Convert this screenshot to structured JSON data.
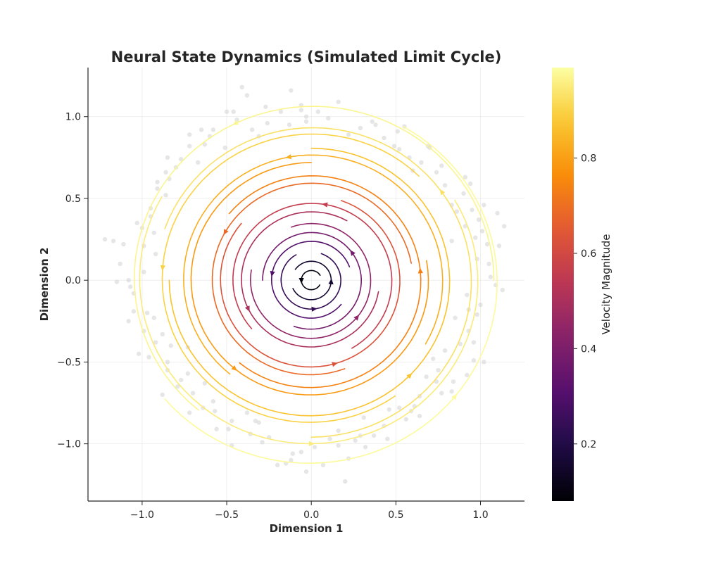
{
  "chart_data": {
    "type": "streamplot",
    "title": "Neural State Dynamics (Simulated Limit Cycle)",
    "xlabel": "Dimension 1",
    "ylabel": "Dimension 2",
    "xlim": [
      -1.32,
      1.26
    ],
    "ylim": [
      -1.35,
      1.3
    ],
    "xticks": [
      -1.0,
      -0.5,
      0.0,
      0.5,
      1.0
    ],
    "xtick_labels": [
      "−1.0",
      "−0.5",
      "0.0",
      "0.5",
      "1.0"
    ],
    "yticks": [
      -1.0,
      -0.5,
      0.0,
      0.5,
      1.0
    ],
    "ytick_labels": [
      "−1.0",
      "−0.5",
      "0.0",
      "0.5",
      "1.0"
    ],
    "grid": true,
    "flow_direction": "counter-clockwise",
    "dynamics": "stable limit cycle of radius about 1.0 (speed grows with distance from the center)",
    "colormap": "inferno",
    "colorbar": {
      "label": "Velocity Magnitude",
      "range": [
        0.08,
        0.99
      ],
      "ticks": [
        0.2,
        0.4,
        0.6,
        0.8
      ],
      "tick_labels": [
        "0.2",
        "0.4",
        "0.6",
        "0.8"
      ],
      "placement": "right"
    },
    "streamlines": [
      {
        "r": 0.06,
        "start_deg": 30,
        "arc_deg": 300,
        "speed": 0.1
      },
      {
        "r": 0.12,
        "start_deg": 205,
        "arc_deg": 300,
        "speed": 0.16
      },
      {
        "r": 0.18,
        "start_deg": 120,
        "arc_deg": 310,
        "speed": 0.24
      },
      {
        "r": 0.24,
        "start_deg": 20,
        "arc_deg": 300,
        "speed": 0.3
      },
      {
        "r": 0.3,
        "start_deg": 250,
        "arc_deg": 290,
        "speed": 0.38
      },
      {
        "r": 0.36,
        "start_deg": 170,
        "arc_deg": 300,
        "speed": 0.44
      },
      {
        "r": 0.42,
        "start_deg": 60,
        "arc_deg": 290,
        "speed": 0.5
      },
      {
        "r": 0.48,
        "start_deg": 300,
        "arc_deg": 280,
        "speed": 0.56
      },
      {
        "r": 0.54,
        "start_deg": 140,
        "arc_deg": 290,
        "speed": 0.63
      },
      {
        "r": 0.6,
        "start_deg": 10,
        "arc_deg": 280,
        "speed": 0.69
      },
      {
        "r": 0.66,
        "start_deg": 230,
        "arc_deg": 270,
        "speed": 0.74
      },
      {
        "r": 0.72,
        "start_deg": 90,
        "arc_deg": 280,
        "speed": 0.79
      },
      {
        "r": 0.78,
        "start_deg": 330,
        "arc_deg": 260,
        "speed": 0.83
      },
      {
        "r": 0.84,
        "start_deg": 180,
        "arc_deg": 270,
        "speed": 0.87
      },
      {
        "r": 0.9,
        "start_deg": 45,
        "arc_deg": 260,
        "speed": 0.9
      },
      {
        "r": 0.96,
        "start_deg": 270,
        "arc_deg": 250,
        "speed": 0.93
      },
      {
        "r": 1.02,
        "start_deg": 150,
        "arc_deg": 240,
        "speed": 0.95
      },
      {
        "r": 1.08,
        "start_deg": 0,
        "arc_deg": 230,
        "speed": 0.97
      },
      {
        "r": 1.13,
        "start_deg": 220,
        "arc_deg": 200,
        "speed": 0.98
      }
    ],
    "scatter_points": [
      [
        1.02,
        0.46
      ],
      [
        1.14,
        0.33
      ],
      [
        0.99,
        0.37
      ],
      [
        0.36,
        0.97
      ],
      [
        0.83,
        0.24
      ],
      [
        0.16,
        1.09
      ],
      [
        -0.06,
        1.04
      ],
      [
        -0.31,
        0.88
      ],
      [
        -0.72,
        0.82
      ],
      [
        -0.86,
        0.52
      ],
      [
        -0.99,
        0.21
      ],
      [
        -1.11,
        0.22
      ],
      [
        -0.93,
        -0.23
      ],
      [
        -0.73,
        -0.41
      ],
      [
        -0.58,
        -0.74
      ],
      [
        -0.38,
        -0.81
      ],
      [
        -0.03,
        -1.17
      ],
      [
        0.16,
        -0.92
      ],
      [
        0.29,
        -0.95
      ],
      [
        0.61,
        -0.77
      ],
      [
        0.75,
        -0.55
      ],
      [
        0.96,
        -0.38
      ],
      [
        1.02,
        -0.5
      ],
      [
        1.06,
        0.02
      ],
      [
        0.91,
        0.63
      ],
      [
        0.7,
        0.81
      ],
      [
        0.55,
        0.94
      ],
      [
        -0.12,
        1.16
      ],
      [
        -0.38,
        1.13
      ],
      [
        -0.5,
        1.03
      ],
      [
        -0.8,
        0.69
      ],
      [
        -0.95,
        0.39
      ],
      [
        -1.08,
        0.0
      ],
      [
        -1.02,
        -0.45
      ],
      [
        -0.88,
        -0.7
      ],
      [
        -0.72,
        -0.81
      ],
      [
        -0.47,
        -1.01
      ],
      [
        -0.2,
        -1.13
      ],
      [
        0.2,
        -1.23
      ],
      [
        0.45,
        -0.97
      ],
      [
        0.56,
        -0.85
      ],
      [
        0.83,
        -0.68
      ],
      [
        0.92,
        -0.58
      ],
      [
        1.09,
        -0.03
      ],
      [
        1.1,
        0.41
      ],
      [
        0.83,
        0.46
      ],
      [
        0.6,
        0.67
      ],
      [
        0.49,
        0.82
      ],
      [
        -0.03,
        0.97
      ],
      [
        -0.26,
        0.96
      ],
      [
        -0.58,
        0.92
      ],
      [
        -0.67,
        0.72
      ],
      [
        -0.86,
        0.66
      ],
      [
        -0.99,
        0.05
      ],
      [
        -1.05,
        -0.08
      ],
      [
        -0.96,
        -0.47
      ],
      [
        -0.79,
        -0.65
      ],
      [
        -0.56,
        -0.91
      ],
      [
        -0.25,
        -0.96
      ],
      [
        0.02,
        -1.02
      ],
      [
        0.32,
        -1.02
      ],
      [
        0.68,
        -0.59
      ],
      [
        0.85,
        -0.23
      ],
      [
        0.98,
        0.13
      ],
      [
        0.97,
        0.26
      ],
      [
        0.79,
        0.58
      ],
      [
        0.52,
        0.8
      ],
      [
        0.29,
        0.93
      ],
      [
        -0.13,
        0.95
      ],
      [
        -0.46,
        1.03
      ],
      [
        -0.72,
        0.89
      ],
      [
        -0.91,
        0.56
      ],
      [
        -1.17,
        0.24
      ],
      [
        -1.15,
        -0.01
      ],
      [
        -0.92,
        -0.38
      ],
      [
        -0.73,
        -0.57
      ],
      [
        -0.64,
        -0.78
      ],
      [
        -0.36,
        -0.94
      ],
      [
        -0.12,
        -1.1
      ],
      [
        0.11,
        -0.97
      ],
      [
        0.43,
        -0.89
      ],
      [
        0.64,
        -0.71
      ],
      [
        0.84,
        -0.62
      ],
      [
        0.96,
        -0.49
      ],
      [
        0.93,
        -0.18
      ],
      [
        1.05,
        0.1
      ],
      [
        0.91,
        0.33
      ],
      [
        0.77,
        0.7
      ],
      [
        0.38,
        0.95
      ],
      [
        0.04,
        1.03
      ],
      [
        -0.27,
        1.06
      ],
      [
        -0.51,
        0.81
      ],
      [
        -0.77,
        0.74
      ],
      [
        -0.95,
        0.44
      ],
      [
        -0.92,
        0.16
      ],
      [
        -1.08,
        -0.25
      ],
      [
        -0.85,
        -0.5
      ],
      [
        -0.7,
        -0.69
      ],
      [
        -0.47,
        -0.86
      ],
      [
        -0.15,
        -1.12
      ],
      [
        0.16,
        -1.01
      ],
      [
        0.37,
        -0.95
      ],
      [
        0.64,
        -0.83
      ],
      [
        0.79,
        -0.43
      ],
      [
        0.98,
        -0.21
      ],
      [
        1.01,
        0.3
      ],
      [
        0.94,
        0.59
      ],
      [
        0.69,
        0.82
      ],
      [
        0.51,
        0.91
      ],
      [
        -0.03,
        1.0
      ],
      [
        -0.41,
        1.18
      ],
      [
        -0.65,
        0.92
      ],
      [
        -0.85,
        0.75
      ],
      [
        -1.03,
        0.35
      ],
      [
        -1.13,
        0.1
      ],
      [
        -0.99,
        -0.31
      ],
      [
        -0.85,
        -0.55
      ],
      [
        -0.57,
        -0.8
      ],
      [
        -0.33,
        -0.86
      ],
      [
        -0.06,
        -1.05
      ],
      [
        0.26,
        -0.98
      ],
      [
        0.46,
        -0.79
      ],
      [
        0.74,
        -0.62
      ],
      [
        0.88,
        -0.39
      ],
      [
        1.0,
        -0.15
      ],
      [
        1.11,
        0.21
      ],
      [
        0.86,
        0.42
      ],
      [
        0.65,
        0.72
      ],
      [
        0.43,
        0.87
      ],
      [
        0.1,
        0.99
      ],
      [
        -0.18,
        1.03
      ],
      [
        -0.44,
        0.98
      ],
      [
        -0.63,
        0.83
      ],
      [
        -0.84,
        0.62
      ],
      [
        -1.0,
        0.32
      ],
      [
        -1.22,
        0.25
      ],
      [
        -1.05,
        -0.19
      ],
      [
        -0.88,
        -0.33
      ],
      [
        -0.77,
        -0.61
      ],
      [
        -0.49,
        -0.91
      ],
      [
        -0.29,
        -0.99
      ],
      [
        0.07,
        -1.13
      ],
      [
        0.31,
        -0.84
      ],
      [
        0.52,
        -0.78
      ],
      [
        0.72,
        -0.48
      ],
      [
        0.93,
        -0.31
      ],
      [
        1.13,
        -0.06
      ],
      [
        0.95,
        0.43
      ],
      [
        0.74,
        0.66
      ],
      [
        0.58,
        0.75
      ],
      [
        0.22,
        0.89
      ],
      [
        -0.06,
        1.07
      ],
      [
        -0.35,
        0.92
      ],
      [
        -0.6,
        0.88
      ],
      [
        -0.91,
        0.6
      ],
      [
        -0.93,
        0.29
      ],
      [
        -1.07,
        -0.04
      ],
      [
        -0.97,
        -0.2
      ],
      [
        -0.83,
        -0.4
      ],
      [
        -0.63,
        -0.63
      ],
      [
        -0.31,
        -0.87
      ],
      [
        -0.11,
        -1.06
      ],
      [
        0.22,
        -1.09
      ],
      [
        0.59,
        -0.8
      ],
      [
        0.77,
        -0.69
      ],
      [
        0.92,
        -0.09
      ],
      [
        1.04,
        0.22
      ],
      [
        0.9,
        0.53
      ]
    ]
  }
}
